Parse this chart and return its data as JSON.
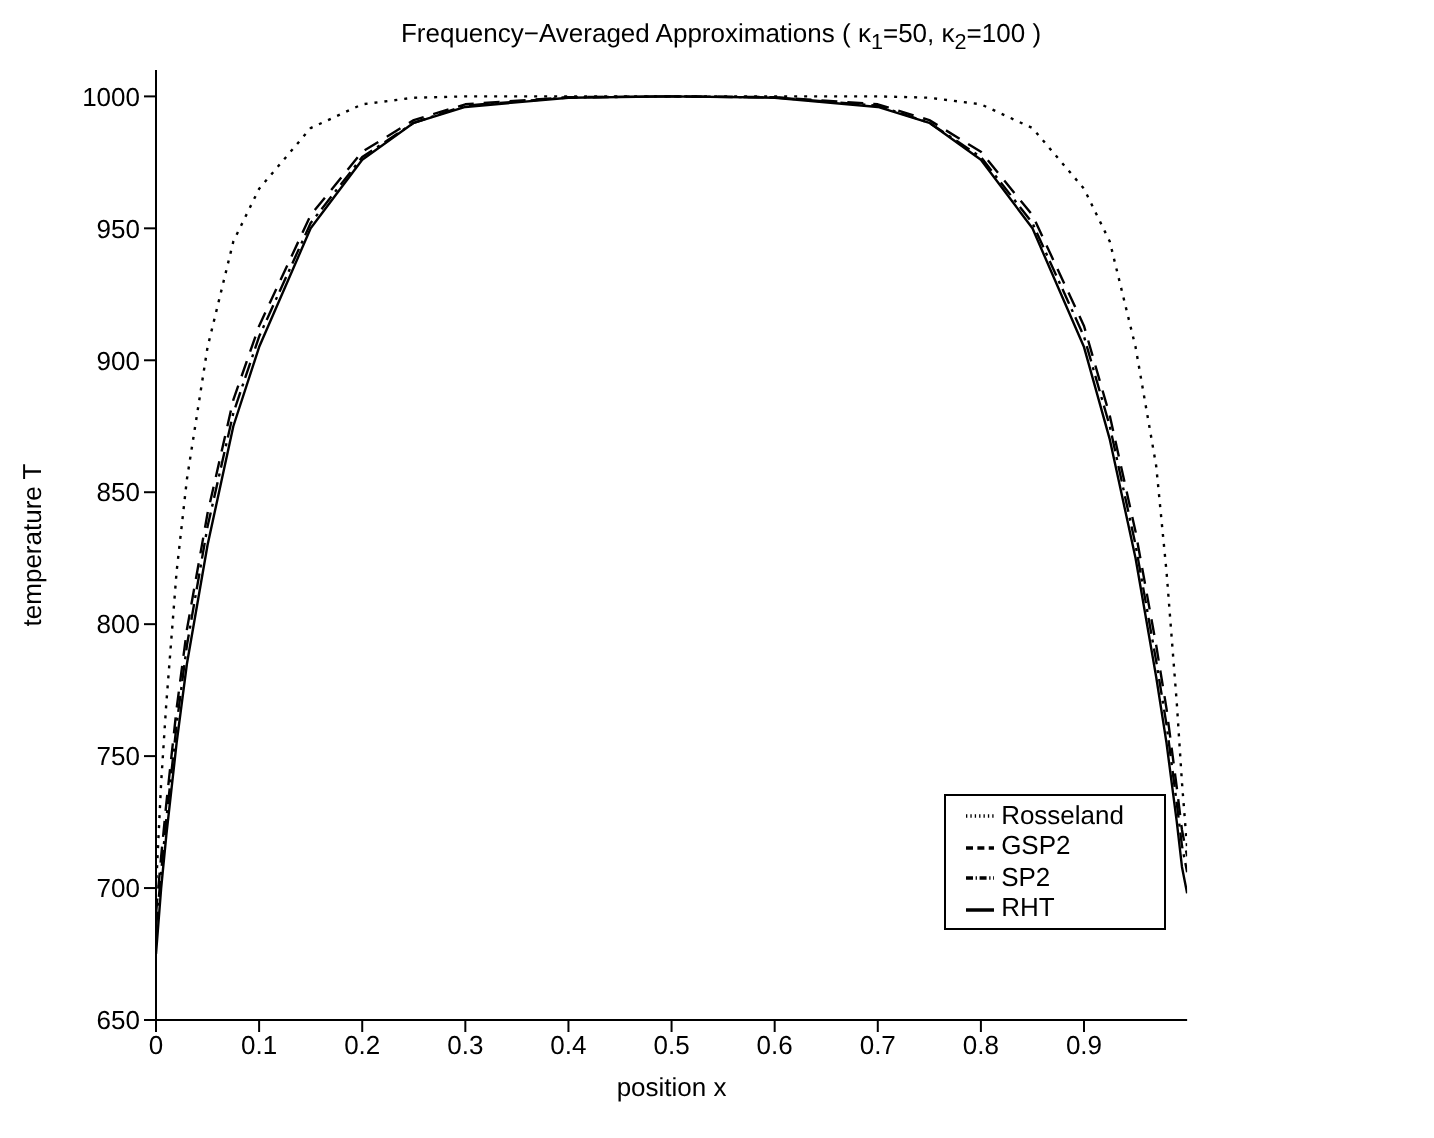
{
  "chart_data": {
    "type": "line",
    "title": "Frequency−Averaged Approximations ( κ$_{1}$=50, κ$_{2}$=100 )",
    "xlabel": "position x",
    "ylabel": "temperature T",
    "x": [
      0,
      0.005,
      0.01,
      0.02,
      0.03,
      0.05,
      0.075,
      0.1,
      0.15,
      0.2,
      0.25,
      0.3,
      0.4,
      0.5,
      0.6,
      0.7,
      0.75,
      0.8,
      0.85,
      0.9,
      0.925,
      0.95,
      0.97,
      0.98,
      0.99,
      0.995,
      1
    ],
    "series": [
      {
        "name": "Rosseland",
        "color": "#000000",
        "line_style": "dotted",
        "values": [
          700,
          740,
          770,
          820,
          855,
          905,
          945,
          965,
          988,
          997,
          999.5,
          1000,
          1000,
          1000,
          1000,
          1000,
          999.5,
          997,
          988,
          965,
          945,
          905,
          860,
          820,
          770,
          740,
          715
        ]
      },
      {
        "name": "GSP2",
        "color": "#000000",
        "line_style": "dashed",
        "values": [
          690,
          712,
          732,
          768,
          798,
          842,
          885,
          913,
          955,
          979,
          991,
          997,
          999.7,
          1000,
          999.7,
          997,
          991,
          979,
          955,
          913,
          879,
          835,
          792,
          768,
          738,
          722,
          712
        ]
      },
      {
        "name": "SP2",
        "color": "#000000",
        "line_style": "dashdot",
        "values": [
          685,
          706,
          726,
          762,
          792,
          837,
          880,
          909,
          952,
          977,
          990,
          996.5,
          999.6,
          1000,
          999.6,
          996.5,
          990,
          977,
          952,
          909,
          875,
          830,
          786,
          762,
          732,
          716,
          706
        ]
      },
      {
        "name": "RHT",
        "color": "#000000",
        "line_style": "solid",
        "values": [
          675,
          700,
          720,
          755,
          785,
          830,
          875,
          905,
          950,
          976,
          990,
          996,
          999.5,
          1000,
          999.5,
          996,
          990,
          976,
          950,
          905,
          870,
          825,
          780,
          755,
          725,
          708,
          698
        ]
      }
    ],
    "xlim": [
      0,
      1
    ],
    "xticks": [
      0,
      0.1,
      0.2,
      0.3,
      0.4,
      0.5,
      0.6,
      0.7,
      0.8,
      0.9
    ],
    "ylim": [
      650,
      1010
    ],
    "yticks": [
      650,
      700,
      750,
      800,
      850,
      900,
      950,
      1000
    ],
    "legend": "bottom right"
  }
}
